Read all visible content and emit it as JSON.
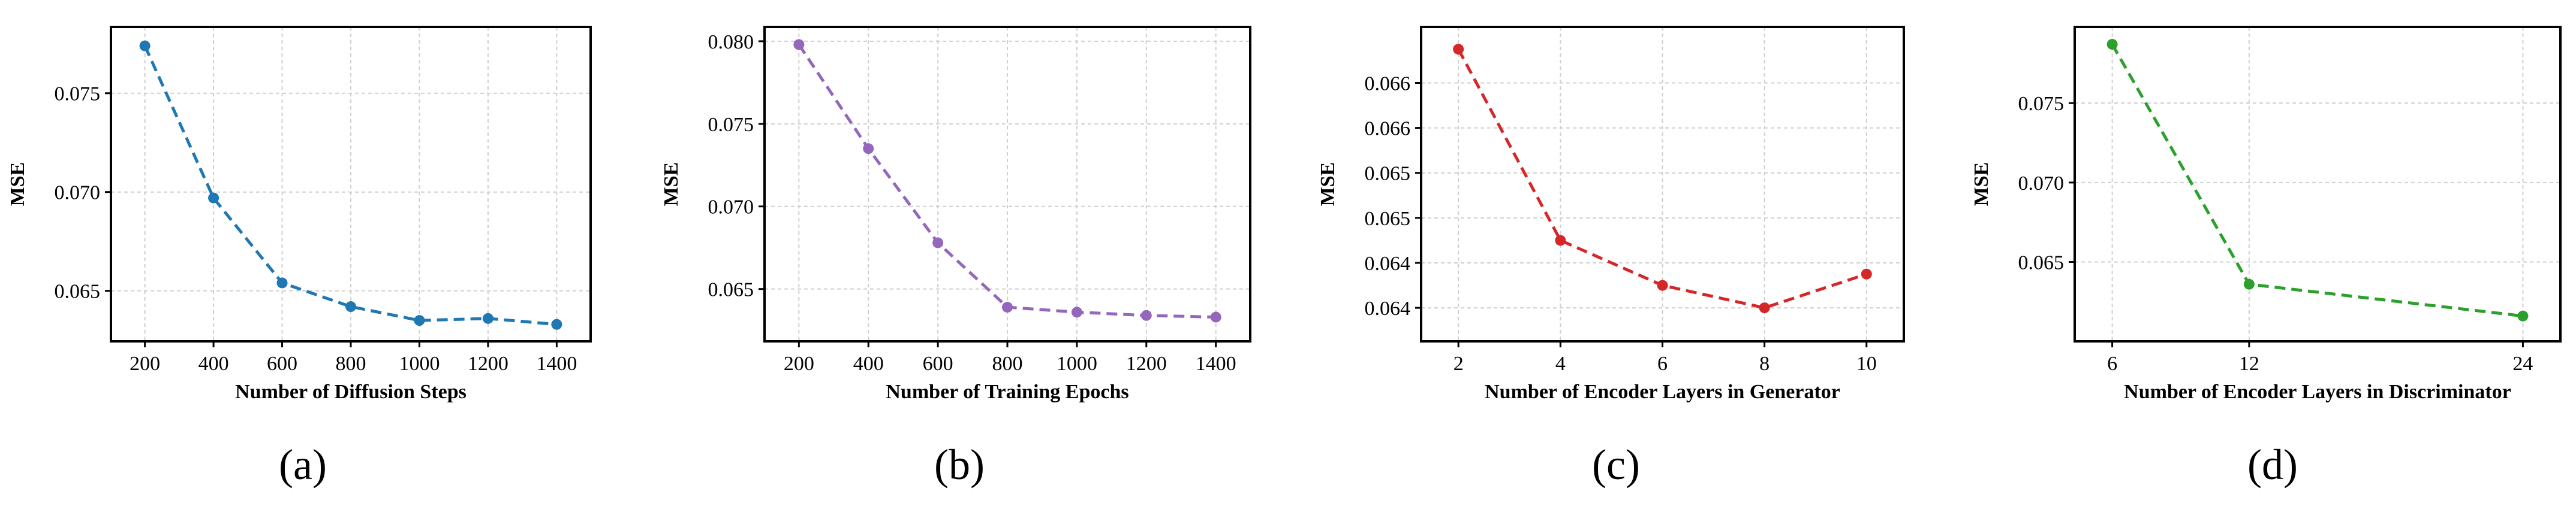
{
  "chart_data": [
    {
      "type": "line",
      "panel_label": "(a)",
      "xlabel": "Number of Diffusion Steps",
      "ylabel": "MSE",
      "color": "#1f77b4",
      "line_style": "dashed",
      "marker": "circle",
      "grid": true,
      "x": [
        200,
        400,
        600,
        800,
        1000,
        1200,
        1400
      ],
      "y": [
        0.0774,
        0.0697,
        0.0654,
        0.0642,
        0.0635,
        0.0636,
        0.0633
      ],
      "xlim": [
        150,
        1450
      ],
      "ylim": [
        0.063,
        0.0778
      ],
      "xticks": [
        200,
        400,
        600,
        800,
        1000,
        1200,
        1400
      ],
      "xtick_labels": [
        "200",
        "400",
        "600",
        "800",
        "1000",
        "1200",
        "1400"
      ],
      "yticks": [
        0.065,
        0.07,
        0.075
      ],
      "ytick_labels": [
        "0.065",
        "0.070",
        "0.075"
      ]
    },
    {
      "type": "line",
      "panel_label": "(b)",
      "xlabel": "Number of Training Epochs",
      "ylabel": "MSE",
      "color": "#9467bd",
      "line_style": "dashed",
      "marker": "circle",
      "grid": true,
      "x": [
        200,
        400,
        600,
        800,
        1000,
        1200,
        1400
      ],
      "y": [
        0.0798,
        0.0735,
        0.0678,
        0.0639,
        0.0636,
        0.0634,
        0.0633
      ],
      "xlim": [
        150,
        1450
      ],
      "ylim": [
        0.0625,
        0.0802
      ],
      "xticks": [
        200,
        400,
        600,
        800,
        1000,
        1200,
        1400
      ],
      "xtick_labels": [
        "200",
        "400",
        "600",
        "800",
        "1000",
        "1200",
        "1400"
      ],
      "yticks": [
        0.065,
        0.07,
        0.075,
        0.08
      ],
      "ytick_labels": [
        "0.065",
        "0.070",
        "0.075",
        "0.080"
      ]
    },
    {
      "type": "line",
      "panel_label": "(c)",
      "xlabel": "Number of Encoder Layers in Generator",
      "ylabel": "MSE",
      "color": "#d62728",
      "line_style": "dashed",
      "marker": "circle",
      "grid": true,
      "x": [
        2,
        4,
        6,
        8,
        10
      ],
      "y": [
        0.0662,
        0.0645,
        0.0641,
        0.0639,
        0.0642
      ],
      "xlim": [
        1.6,
        10.4
      ],
      "ylim": [
        0.0637,
        0.0663
      ],
      "xticks": [
        2,
        4,
        6,
        8,
        10
      ],
      "xtick_labels": [
        "2",
        "4",
        "6",
        "8",
        "10"
      ],
      "yticks": [
        0.0639,
        0.0643,
        0.0647,
        0.0651,
        0.0655,
        0.0659
      ],
      "ytick_labels": [
        "0.064",
        "0.064",
        "0.065",
        "0.065",
        "0.066",
        "0.066"
      ]
    },
    {
      "type": "line",
      "panel_label": "(d)",
      "xlabel": "Number of Encoder Layers in Discriminator",
      "ylabel": "MSE",
      "color": "#2ca02c",
      "line_style": "dashed",
      "marker": "circle",
      "grid": true,
      "x": [
        6,
        12,
        24
      ],
      "y": [
        0.0787,
        0.0636,
        0.0616
      ],
      "xlim": [
        5.1,
        24.9
      ],
      "ylim": [
        0.0607,
        0.0791
      ],
      "xticks": [
        6,
        12,
        24
      ],
      "xtick_labels": [
        "6",
        "12",
        "24"
      ],
      "yticks": [
        0.065,
        0.07,
        0.075
      ],
      "ytick_labels": [
        "0.065",
        "0.070",
        "0.075"
      ]
    }
  ]
}
